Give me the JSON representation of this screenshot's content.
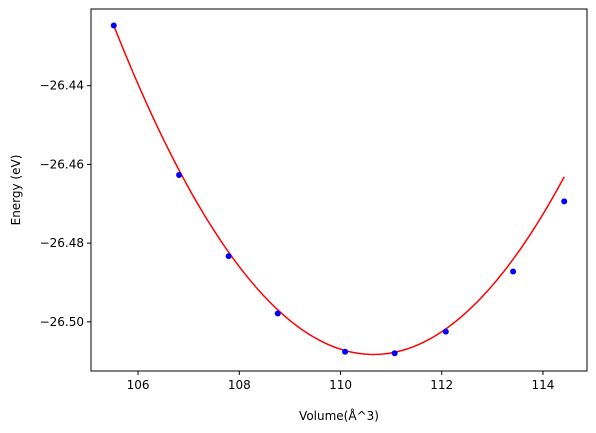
{
  "chart_data": {
    "type": "scatter",
    "title": "",
    "xlabel": "Volume(Å^3)",
    "ylabel": "Energy (eV)",
    "xlim": [
      105.07,
      114.87
    ],
    "ylim": [
      -26.5125,
      -26.4205
    ],
    "x_ticks": [
      106,
      108,
      110,
      112,
      114
    ],
    "x_tick_labels": [
      "106",
      "108",
      "110",
      "112",
      "114"
    ],
    "y_ticks": [
      -26.44,
      -26.46,
      -26.48,
      -26.5
    ],
    "y_tick_labels": [
      "−26.44",
      "−26.46",
      "−26.48",
      "−26.50"
    ],
    "grid": false,
    "series": [
      {
        "kind": "points",
        "color": "#0000ff",
        "x": [
          105.52,
          106.81,
          107.79,
          108.76,
          110.09,
          111.07,
          112.08,
          113.41,
          114.42
        ],
        "y": [
          -26.4247,
          -26.4627,
          -26.4833,
          -26.4979,
          -26.5076,
          -26.508,
          -26.5025,
          -26.4872,
          -26.4694
        ]
      },
      {
        "kind": "fit-curve",
        "color": "#ff0000",
        "vertex_x": 110.65,
        "vertex_y": -26.5083,
        "x_range": [
          105.52,
          114.42
        ]
      }
    ]
  }
}
